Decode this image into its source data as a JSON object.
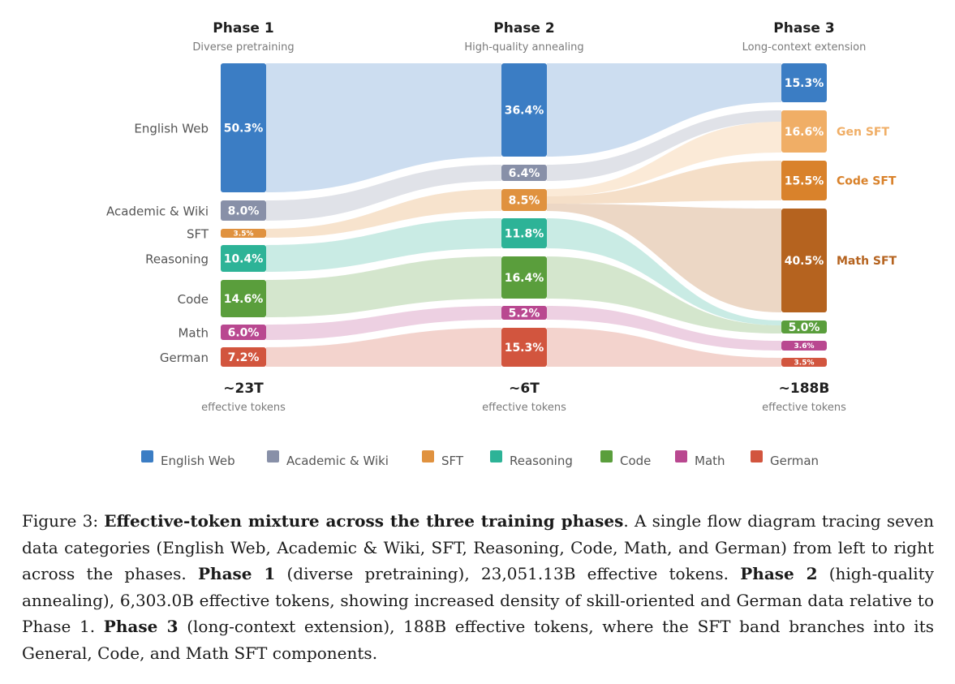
{
  "phases": [
    {
      "title": "Phase 1",
      "subtitle": "Diverse pretraining",
      "total": "~23T",
      "total_sub": "effective tokens"
    },
    {
      "title": "Phase 2",
      "subtitle": "High-quality annealing",
      "total": "~6T",
      "total_sub": "effective tokens"
    },
    {
      "title": "Phase 3",
      "subtitle": "Long-context extension",
      "total": "~188B",
      "total_sub": "effective tokens"
    }
  ],
  "categories": [
    {
      "name": "English Web",
      "color": "#3b7dc4"
    },
    {
      "name": "Academic & Wiki",
      "color": "#8890a8"
    },
    {
      "name": "SFT",
      "color": "#e0923f"
    },
    {
      "name": "Reasoning",
      "color": "#2db397"
    },
    {
      "name": "Code",
      "color": "#5a9e3c"
    },
    {
      "name": "Math",
      "color": "#b94890"
    },
    {
      "name": "German",
      "color": "#d2553e"
    }
  ],
  "chart_data": {
    "type": "sankey",
    "columns": [
      "Phase 1",
      "Phase 2",
      "Phase 3"
    ],
    "nodes": {
      "phase1": [
        {
          "category": "English Web",
          "value": "50.3%"
        },
        {
          "category": "Academic & Wiki",
          "value": "8.0%"
        },
        {
          "category": "SFT",
          "value": "3.5%"
        },
        {
          "category": "Reasoning",
          "value": "10.4%"
        },
        {
          "category": "Code",
          "value": "14.6%"
        },
        {
          "category": "Math",
          "value": "6.0%"
        },
        {
          "category": "German",
          "value": "7.2%"
        }
      ],
      "phase2": [
        {
          "category": "English Web",
          "value": "36.4%"
        },
        {
          "category": "Academic & Wiki",
          "value": "6.4%"
        },
        {
          "category": "SFT",
          "value": "8.5%"
        },
        {
          "category": "Reasoning",
          "value": "11.8%"
        },
        {
          "category": "Code",
          "value": "16.4%"
        },
        {
          "category": "Math",
          "value": "5.2%"
        },
        {
          "category": "German",
          "value": "15.3%"
        }
      ],
      "phase3": [
        {
          "category": "English Web",
          "value": "15.3%",
          "label": ""
        },
        {
          "category": "Gen SFT",
          "value": "16.6%",
          "label": "Gen SFT",
          "color": "#f0ae66"
        },
        {
          "category": "Code SFT",
          "value": "15.5%",
          "label": "Code SFT",
          "color": "#d9822b"
        },
        {
          "category": "Math SFT",
          "value": "40.5%",
          "label": "Math SFT",
          "color": "#b5631f"
        },
        {
          "category": "Code",
          "value": "5.0%",
          "label": ""
        },
        {
          "category": "Math",
          "value": "3.6%",
          "label": ""
        },
        {
          "category": "German",
          "value": "3.5%",
          "label": ""
        }
      ]
    },
    "totals": [
      "~23T",
      "~6T",
      "~188B"
    ]
  },
  "caption": {
    "prefix": "Figure 3: ",
    "bold_title": "Effective-token mixture across the three training phases",
    "t1": ". A single flow diagram tracing seven data categories (English Web, Academic & Wiki, SFT, Reasoning, Code, Math, and German) from left to right across the phases. ",
    "p1": "Phase 1",
    "t2": " (diverse pretraining), 23,051.13B effective tokens. ",
    "p2": "Phase 2",
    "t3": " (high-quality annealing), 6,303.0B effective tokens, showing increased density of skill-oriented and German data relative to Phase 1. ",
    "p3": "Phase 3",
    "t4": " (long-context extension), 188B effective tokens, where the SFT band branches into its General, Code, and Math SFT components."
  }
}
